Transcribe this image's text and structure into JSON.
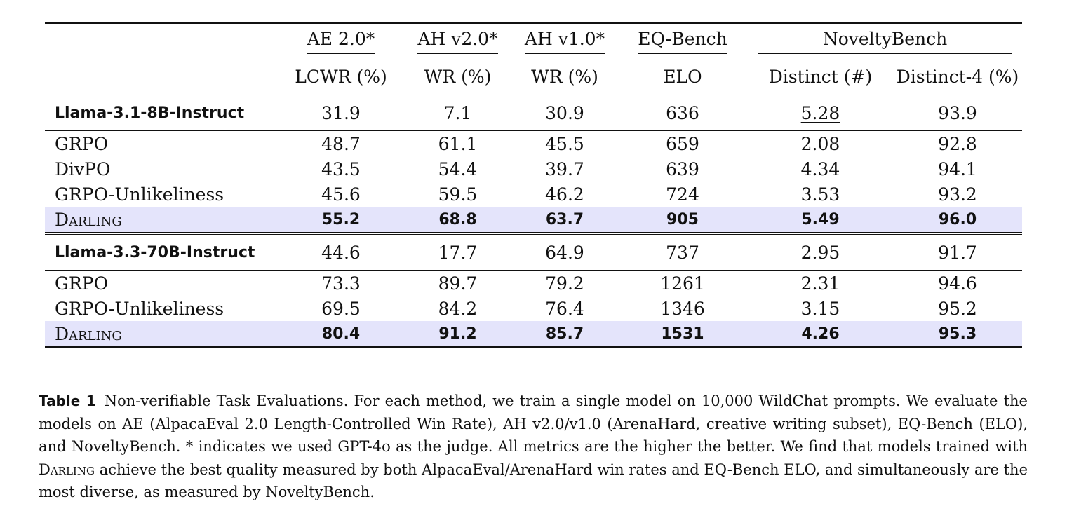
{
  "table": {
    "header_groups": [
      "AE 2.0*",
      "AH v2.0*",
      "AH v1.0*",
      "EQ-Bench",
      "NoveltyBench"
    ],
    "subheaders": [
      "LCWR (%)",
      "WR (%)",
      "WR (%)",
      "ELO",
      "Distinct (#)",
      "Distinct-4 (%)"
    ],
    "blocks": [
      {
        "base": {
          "name": "Llama-3.1-8B-Instruct",
          "values": [
            "31.9",
            "7.1",
            "30.9",
            "636",
            "5.28",
            "93.9"
          ],
          "underlined": [
            "5.28"
          ]
        },
        "rows": [
          {
            "name": "GRPO",
            "values": [
              "48.7",
              "61.1",
              "45.5",
              "659",
              "2.08",
              "92.8"
            ]
          },
          {
            "name": "DivPO",
            "values": [
              "43.5",
              "54.4",
              "39.7",
              "639",
              "4.34",
              "94.1"
            ]
          },
          {
            "name": "GRPO-Unlikeliness",
            "values": [
              "45.6",
              "59.5",
              "46.2",
              "724",
              "3.53",
              "93.2"
            ]
          },
          {
            "name": "Darling",
            "values": [
              "55.2",
              "68.8",
              "63.7",
              "905",
              "5.49",
              "96.0"
            ],
            "highlighted": true,
            "bold": true
          }
        ]
      },
      {
        "base": {
          "name": "Llama-3.3-70B-Instruct",
          "values": [
            "44.6",
            "17.7",
            "64.9",
            "737",
            "2.95",
            "91.7"
          ]
        },
        "rows": [
          {
            "name": "GRPO",
            "values": [
              "73.3",
              "89.7",
              "79.2",
              "1261",
              "2.31",
              "94.6"
            ]
          },
          {
            "name": "GRPO-Unlikeliness",
            "values": [
              "69.5",
              "84.2",
              "76.4",
              "1346",
              "3.15",
              "95.2"
            ]
          },
          {
            "name": "Darling",
            "values": [
              "80.4",
              "91.2",
              "85.7",
              "1531",
              "4.26",
              "95.3"
            ],
            "highlighted": true,
            "bold": true
          }
        ]
      }
    ],
    "colors": {
      "highlight_row": "#e4e4fb",
      "rule": "#111111"
    }
  },
  "caption": {
    "label": "Table 1",
    "text_1": "Non-verifiable Task Evaluations. For each method, we train a single model on 10,000 WildChat prompts. We evaluate the models on AE (AlpacaEval 2.0 Length-Controlled Win Rate), AH v2.0/v1.0 (ArenaHard, creative writing subset), EQ-Bench (ELO), and NoveltyBench. * indicates we used GPT-4o as the judge. All metrics are the higher the better. We find that models trained with",
    "method_name": "Darling",
    "text_2": "achieve the best quality measured by both AlpacaEval/ArenaHard win rates and EQ-Bench ELO, and simultaneously are the most diverse, as measured by NoveltyBench."
  }
}
